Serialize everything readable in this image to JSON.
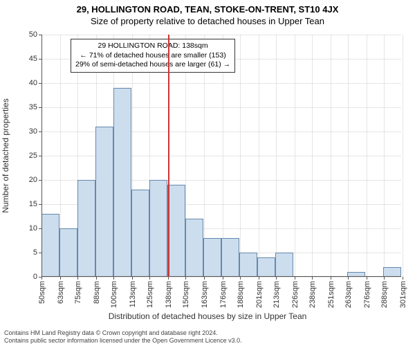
{
  "title": "29, HOLLINGTON ROAD, TEAN, STOKE-ON-TRENT, ST10 4JX",
  "subtitle": "Size of property relative to detached houses in Upper Tean",
  "ylabel": "Number of detached properties",
  "xlabel": "Distribution of detached houses by size in Upper Tean",
  "chart": {
    "type": "histogram",
    "bar_color": "#ccddee",
    "bar_border_color": "#6688aa",
    "grid_color": "#cccccc",
    "marker_color": "#cc3333",
    "background_color": "#ffffff",
    "ylim": [
      0,
      50
    ],
    "ytick_step": 5,
    "yticks": [
      0,
      5,
      10,
      15,
      20,
      25,
      30,
      35,
      40,
      45,
      50
    ],
    "x_start": 50,
    "x_step": 12.5,
    "xticks": [
      {
        "v": 50,
        "label": "50sqm"
      },
      {
        "v": 63,
        "label": "63sqm"
      },
      {
        "v": 75,
        "label": "75sqm"
      },
      {
        "v": 88,
        "label": "88sqm"
      },
      {
        "v": 100,
        "label": "100sqm"
      },
      {
        "v": 113,
        "label": "113sqm"
      },
      {
        "v": 125,
        "label": "125sqm"
      },
      {
        "v": 138,
        "label": "138sqm"
      },
      {
        "v": 150,
        "label": "150sqm"
      },
      {
        "v": 163,
        "label": "163sqm"
      },
      {
        "v": 176,
        "label": "176sqm"
      },
      {
        "v": 188,
        "label": "188sqm"
      },
      {
        "v": 201,
        "label": "201sqm"
      },
      {
        "v": 213,
        "label": "213sqm"
      },
      {
        "v": 226,
        "label": "226sqm"
      },
      {
        "v": 238,
        "label": "238sqm"
      },
      {
        "v": 251,
        "label": "251sqm"
      },
      {
        "v": 263,
        "label": "263sqm"
      },
      {
        "v": 276,
        "label": "276sqm"
      },
      {
        "v": 288,
        "label": "288sqm"
      },
      {
        "v": 301,
        "label": "301sqm"
      }
    ],
    "values": [
      13,
      10,
      20,
      31,
      39,
      18,
      20,
      19,
      12,
      8,
      8,
      5,
      4,
      5,
      0,
      0,
      0,
      1,
      0,
      2
    ],
    "marker_x": 138,
    "bar_width_ratio": 1.0
  },
  "annotation": {
    "lines": [
      "29 HOLLINGTON ROAD: 138sqm",
      "← 71% of detached houses are smaller (153)",
      "29% of semi-detached houses are larger (61) →"
    ]
  },
  "attribution": {
    "line1": "Contains HM Land Registry data © Crown copyright and database right 2024.",
    "line2": "Contains public sector information licensed under the Open Government Licence v3.0."
  }
}
